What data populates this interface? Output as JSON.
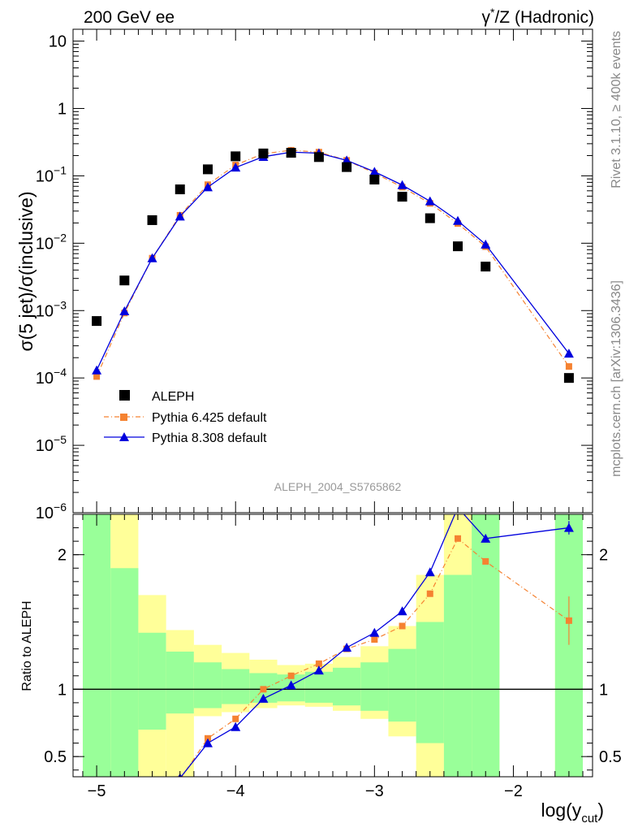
{
  "header": {
    "left": "200 GeV ee",
    "right_pre": "γ",
    "right_sup": "*",
    "right_post": "/Z (Hadronic)"
  },
  "side_labels": {
    "rivet": "Rivet 3.1.10, ≥ 400k events",
    "mcplots": "mcplots.cern.ch [arXiv:1306.3436]"
  },
  "analysis_id": "ALEPH_2004_S5765862",
  "colors": {
    "data": "#000000",
    "pythia6": "#f58231",
    "pythia8": "#0000dd",
    "band_green": "#99ff99",
    "band_yellow": "#ffff99"
  },
  "chart_data": [
    {
      "type": "scatter",
      "ylabel": "σ(5 jet)/σ(inclusive)",
      "yscale": "log",
      "ylim": [
        1e-06,
        15
      ],
      "xlim": [
        -5.17,
        -1.43
      ],
      "y_ticks": [
        "10^-6",
        "10^-5",
        "10^-4",
        "10^-3",
        "10^-2",
        "10^-1",
        "1",
        "10"
      ],
      "legend_position": "bottom-left",
      "series": [
        {
          "name": "ALEPH",
          "marker": "square",
          "x": [
            -5.0,
            -4.8,
            -4.6,
            -4.4,
            -4.2,
            -4.0,
            -3.8,
            -3.6,
            -3.4,
            -3.2,
            -3.0,
            -2.8,
            -2.6,
            -2.4,
            -2.2,
            -1.6
          ],
          "y": [
            0.0007,
            0.0028,
            0.022,
            0.063,
            0.125,
            0.195,
            0.215,
            0.22,
            0.19,
            0.135,
            0.088,
            0.049,
            0.0235,
            0.009,
            0.0045,
            0.0001
          ]
        },
        {
          "name": "Pythia 6.425 default",
          "marker": "square",
          "line": "dash-dot",
          "x": [
            -5.0,
            -4.8,
            -4.6,
            -4.4,
            -4.2,
            -4.0,
            -3.8,
            -3.6,
            -3.4,
            -3.2,
            -3.0,
            -2.8,
            -2.6,
            -2.4,
            -2.2,
            -1.6
          ],
          "y": [
            0.000105,
            0.00092,
            0.006,
            0.026,
            0.074,
            0.145,
            0.213,
            0.24,
            0.225,
            0.17,
            0.11,
            0.068,
            0.039,
            0.0196,
            0.0089,
            0.000148
          ]
        },
        {
          "name": "Pythia 8.308 default",
          "marker": "triangle",
          "line": "solid",
          "x": [
            -5.0,
            -4.8,
            -4.6,
            -4.4,
            -4.2,
            -4.0,
            -3.8,
            -3.6,
            -3.4,
            -3.2,
            -3.0,
            -2.8,
            -2.6,
            -2.4,
            -2.2,
            -1.6
          ],
          "y": [
            0.00013,
            0.00098,
            0.006,
            0.025,
            0.068,
            0.133,
            0.192,
            0.225,
            0.217,
            0.17,
            0.115,
            0.073,
            0.042,
            0.0215,
            0.0096,
            0.00023
          ]
        }
      ]
    },
    {
      "type": "line",
      "ylabel": "Ratio to ALEPH",
      "xlabel": "log(y_cut)",
      "xlabel_main": "log(y",
      "xlabel_sub": "cut",
      "xlabel_end": ")",
      "ylim": [
        0.35,
        2.3
      ],
      "xlim": [
        -5.17,
        -1.43
      ],
      "x_ticks": [
        -5,
        -4,
        -3,
        -2
      ],
      "x_tick_labels": [
        "−5",
        "−4",
        "−3",
        "−2"
      ],
      "y_ticks": [
        0.5,
        1,
        2
      ],
      "y_tick_labels": [
        "0.5",
        "1",
        "2"
      ],
      "reference": 1,
      "uncertainty_bands": [
        {
          "xlo": -5.1,
          "xhi": -4.9,
          "green": [
            0.3,
            2.4
          ],
          "yellow": [
            0.3,
            2.4
          ]
        },
        {
          "xlo": -4.9,
          "xhi": -4.7,
          "green": [
            0.3,
            1.9
          ],
          "yellow": [
            0.3,
            2.4
          ]
        },
        {
          "xlo": -4.7,
          "xhi": -4.5,
          "green": [
            0.7,
            1.42
          ],
          "yellow": [
            0.3,
            1.7
          ]
        },
        {
          "xlo": -4.5,
          "xhi": -4.3,
          "green": [
            0.82,
            1.28
          ],
          "yellow": [
            0.3,
            1.44
          ]
        },
        {
          "xlo": -4.3,
          "xhi": -4.1,
          "green": [
            0.86,
            1.2
          ],
          "yellow": [
            0.8,
            1.33
          ]
        },
        {
          "xlo": -4.1,
          "xhi": -3.9,
          "green": [
            0.89,
            1.15
          ],
          "yellow": [
            0.83,
            1.27
          ]
        },
        {
          "xlo": -3.9,
          "xhi": -3.7,
          "green": [
            0.9,
            1.12
          ],
          "yellow": [
            0.86,
            1.22
          ]
        },
        {
          "xlo": -3.7,
          "xhi": -3.5,
          "green": [
            0.91,
            1.11
          ],
          "yellow": [
            0.88,
            1.18
          ]
        },
        {
          "xlo": -3.5,
          "xhi": -3.3,
          "green": [
            0.9,
            1.13
          ],
          "yellow": [
            0.87,
            1.19
          ]
        },
        {
          "xlo": -3.3,
          "xhi": -3.1,
          "green": [
            0.88,
            1.16
          ],
          "yellow": [
            0.84,
            1.24
          ]
        },
        {
          "xlo": -3.1,
          "xhi": -2.9,
          "green": [
            0.84,
            1.2
          ],
          "yellow": [
            0.78,
            1.32
          ]
        },
        {
          "xlo": -2.9,
          "xhi": -2.7,
          "green": [
            0.76,
            1.3
          ],
          "yellow": [
            0.65,
            1.47
          ]
        },
        {
          "xlo": -2.7,
          "xhi": -2.5,
          "green": [
            0.6,
            1.5
          ],
          "yellow": [
            0.3,
            1.85
          ]
        },
        {
          "xlo": -2.5,
          "xhi": -2.3,
          "green": [
            0.3,
            1.85
          ],
          "yellow": [
            0.3,
            2.4
          ]
        },
        {
          "xlo": -2.3,
          "xhi": -2.1,
          "green": [
            0.3,
            2.4
          ],
          "yellow": [
            0.3,
            2.4
          ]
        },
        {
          "xlo": -1.7,
          "xhi": -1.5,
          "green": [
            0.3,
            2.4
          ],
          "yellow": [
            0.3,
            2.4
          ]
        }
      ],
      "series": [
        {
          "name": "Pythia 6.425 default",
          "x": [
            -4.4,
            -4.2,
            -4.0,
            -3.8,
            -3.6,
            -3.4,
            -3.2,
            -3.0,
            -2.8,
            -2.6,
            -2.4,
            -2.2,
            -1.6
          ],
          "y": [
            0.33,
            0.635,
            0.78,
            1.0,
            1.1,
            1.19,
            1.3,
            1.37,
            1.47,
            1.71,
            2.12,
            1.95,
            1.51
          ],
          "yerr_last": [
            1.33,
            1.69
          ]
        },
        {
          "name": "Pythia 8.308 default",
          "x": [
            -4.4,
            -4.2,
            -4.0,
            -3.8,
            -3.6,
            -3.4,
            -3.2,
            -3.0,
            -2.8,
            -2.6,
            -2.4,
            -2.2,
            -1.6
          ],
          "y": [
            0.34,
            0.6,
            0.72,
            0.93,
            1.03,
            1.14,
            1.31,
            1.42,
            1.58,
            1.87,
            2.35,
            2.12,
            2.2
          ]
        }
      ]
    }
  ]
}
